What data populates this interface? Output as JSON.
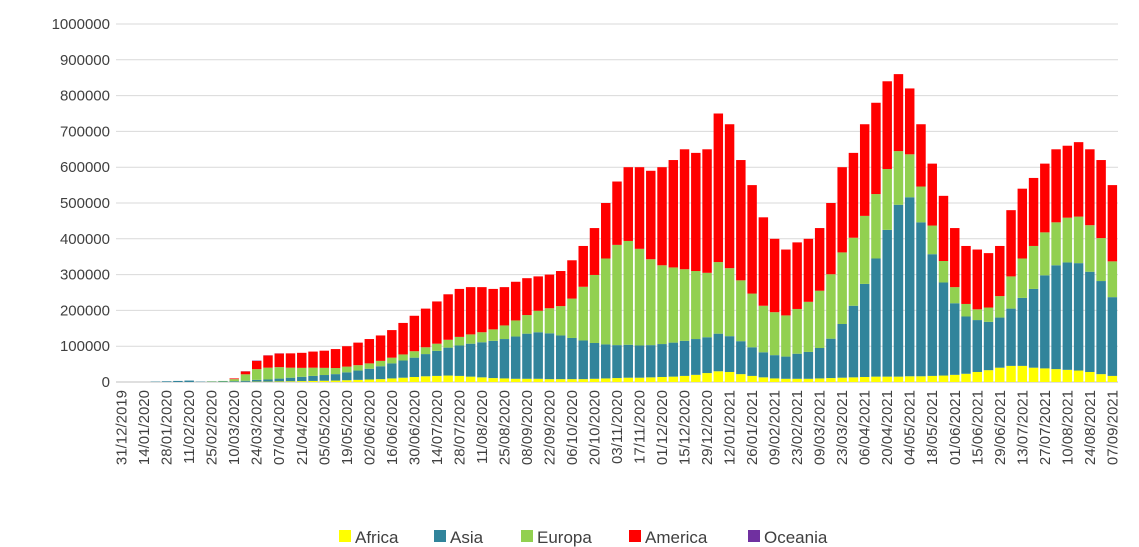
{
  "chart_data": {
    "type": "stacked_bar",
    "categories": [
      "31/12/2019",
      null,
      "14/01/2020",
      null,
      "28/01/2020",
      null,
      "11/02/2020",
      null,
      "25/02/2020",
      null,
      "10/03/2020",
      null,
      "24/03/2020",
      null,
      "07/04/2020",
      null,
      "21/04/2020",
      null,
      "05/05/2020",
      null,
      "19/05/2020",
      null,
      "02/06/2020",
      null,
      "16/06/2020",
      null,
      "30/06/2020",
      null,
      "14/07/2020",
      null,
      "28/07/2020",
      null,
      "11/08/2020",
      null,
      "25/08/2020",
      null,
      "08/09/2020",
      null,
      "22/09/2020",
      null,
      "06/10/2020",
      null,
      "20/10/2020",
      null,
      "03/11/2020",
      null,
      "17/11/2020",
      null,
      "01/12/2020",
      null,
      "15/12/2020",
      null,
      "29/12/2020",
      null,
      "12/01/2021",
      null,
      "26/01/2021",
      null,
      "09/02/2021",
      null,
      "23/02/2021",
      null,
      "09/03/2021",
      null,
      "23/03/2021",
      null,
      "06/04/2021",
      null,
      "20/04/2021",
      null,
      "04/05/2021",
      null,
      "18/05/2021",
      null,
      "01/06/2021",
      null,
      "15/06/2021",
      null,
      "29/06/2021",
      null,
      "13/07/2021",
      null,
      "27/07/2021",
      null,
      "10/08/2021",
      null,
      "24/08/2021",
      null,
      "07/09/2021"
    ],
    "series": [
      {
        "name": "Africa",
        "color": "#ffff00",
        "values": [
          0,
          0,
          0,
          0,
          0,
          0,
          0,
          0,
          0,
          0,
          0,
          500,
          1000,
          1000,
          1500,
          2000,
          2500,
          3000,
          3500,
          4000,
          5000,
          6000,
          7000,
          8000,
          10000,
          12000,
          14000,
          16000,
          17000,
          18000,
          17000,
          15000,
          13000,
          11000,
          10000,
          9000,
          9000,
          9000,
          8000,
          8000,
          8000,
          8000,
          9000,
          10000,
          11000,
          12000,
          12000,
          13000,
          14000,
          15000,
          17000,
          20000,
          25000,
          30000,
          28000,
          22000,
          17000,
          13000,
          10000,
          9000,
          9000,
          9000,
          10000,
          11000,
          12000,
          13000,
          14000,
          15000,
          15000,
          15000,
          16000,
          16000,
          17000,
          18000,
          20000,
          23000,
          28000,
          33000,
          40000,
          45000,
          45000,
          40000,
          38000,
          36000,
          34000,
          32000,
          28000,
          22000,
          17000
        ]
      },
      {
        "name": "Asia",
        "color": "#31849b",
        "values": [
          0,
          0,
          0,
          1000,
          2000,
          3000,
          4000,
          1000,
          1000,
          1500,
          2000,
          3000,
          5000,
          6000,
          8000,
          10000,
          12000,
          14000,
          16000,
          18000,
          22000,
          26000,
          30000,
          36000,
          42000,
          48000,
          54000,
          62000,
          70000,
          78000,
          85000,
          92000,
          98000,
          104000,
          110000,
          118000,
          126000,
          130000,
          128000,
          122000,
          115000,
          108000,
          100000,
          95000,
          92000,
          92000,
          90000,
          90000,
          92000,
          95000,
          98000,
          100000,
          100000,
          105000,
          100000,
          92000,
          80000,
          70000,
          65000,
          62000,
          70000,
          75000,
          85000,
          110000,
          150000,
          200000,
          260000,
          330000,
          410000,
          480000,
          500000,
          430000,
          340000,
          260000,
          200000,
          160000,
          145000,
          135000,
          140000,
          160000,
          190000,
          220000,
          260000,
          290000,
          300000,
          300000,
          280000,
          260000,
          220000
        ]
      },
      {
        "name": "Europa",
        "color": "#92d050",
        "values": [
          0,
          0,
          0,
          0,
          0,
          0,
          0,
          0,
          1000,
          1500,
          6000,
          18000,
          30000,
          33000,
          32000,
          28000,
          25000,
          23000,
          20000,
          17000,
          16000,
          15000,
          15000,
          15000,
          16000,
          17000,
          18000,
          19000,
          20000,
          22000,
          24000,
          26000,
          28000,
          32000,
          38000,
          45000,
          52000,
          60000,
          70000,
          82000,
          110000,
          150000,
          190000,
          240000,
          280000,
          290000,
          270000,
          240000,
          220000,
          210000,
          200000,
          190000,
          180000,
          200000,
          190000,
          170000,
          150000,
          130000,
          120000,
          115000,
          125000,
          140000,
          160000,
          180000,
          200000,
          190000,
          190000,
          180000,
          170000,
          150000,
          120000,
          100000,
          80000,
          60000,
          45000,
          35000,
          30000,
          40000,
          60000,
          90000,
          110000,
          120000,
          120000,
          120000,
          125000,
          130000,
          130000,
          120000,
          100000
        ]
      },
      {
        "name": "America",
        "color": "#ff0000",
        "values": [
          0,
          0,
          0,
          0,
          0,
          0,
          0,
          0,
          0,
          0,
          2000,
          8000,
          23000,
          34000,
          38000,
          40000,
          42000,
          45000,
          48000,
          53000,
          57000,
          63000,
          68000,
          71000,
          77000,
          88000,
          99000,
          108000,
          118000,
          127000,
          134000,
          132000,
          126000,
          113000,
          107000,
          108000,
          103000,
          96000,
          94000,
          98000,
          107000,
          114000,
          131000,
          155000,
          177000,
          206000,
          228000,
          247000,
          274000,
          300000,
          335000,
          330000,
          345000,
          415000,
          402000,
          336000,
          303000,
          247000,
          205000,
          184000,
          186000,
          176000,
          175000,
          199000,
          238000,
          237000,
          256000,
          255000,
          245000,
          215000,
          184000,
          174000,
          173000,
          182000,
          165000,
          162000,
          167000,
          152000,
          140000,
          185000,
          195000,
          190000,
          192000,
          204000,
          201000,
          208000,
          212000,
          218000,
          213000
        ]
      },
      {
        "name": "Oceania",
        "color": "#7030a0",
        "values": [
          0,
          0,
          0,
          0,
          0,
          0,
          0,
          0,
          0,
          0,
          0,
          500,
          1000,
          500,
          500,
          0,
          0,
          0,
          0,
          0,
          0,
          0,
          0,
          0,
          0,
          0,
          0,
          0,
          0,
          0,
          0,
          0,
          0,
          0,
          0,
          0,
          0,
          0,
          0,
          0,
          0,
          0,
          0,
          0,
          0,
          0,
          0,
          0,
          0,
          0,
          0,
          0,
          0,
          0,
          0,
          0,
          0,
          0,
          0,
          0,
          0,
          0,
          0,
          0,
          0,
          0,
          0,
          0,
          0,
          0,
          0,
          0,
          0,
          0,
          0,
          0,
          0,
          0,
          0,
          0,
          0,
          0,
          0,
          0,
          0,
          0,
          0,
          0,
          0
        ]
      }
    ],
    "ylim": [
      0,
      1000000
    ],
    "yticks": [
      0,
      100000,
      200000,
      300000,
      400000,
      500000,
      600000,
      700000,
      800000,
      900000,
      1000000
    ],
    "grid": true,
    "legend": "bottom"
  }
}
